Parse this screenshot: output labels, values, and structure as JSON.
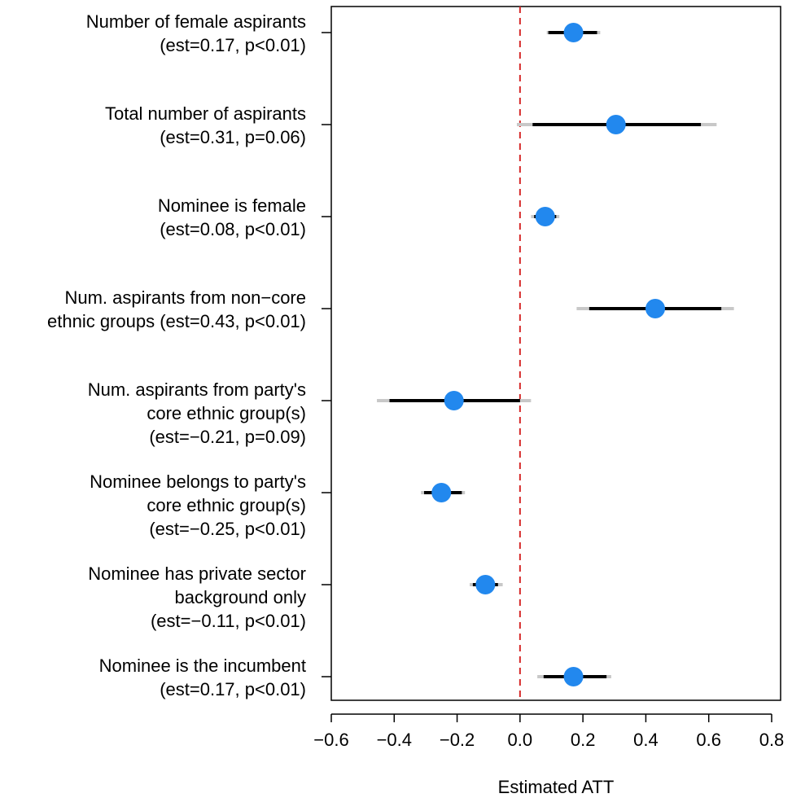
{
  "chart_data": {
    "type": "scatter",
    "xlabel": "Estimated ATT",
    "xlim": [
      -0.6,
      0.8
    ],
    "x_ticks": [
      "−0.6",
      "−0.4",
      "−0.2",
      "0.0",
      "0.2",
      "0.4",
      "0.6",
      "0.8"
    ],
    "reference_line": {
      "x": 0,
      "style": "dashed",
      "color": "#d62a2a"
    },
    "point_color": "#2288ee",
    "ci_outer_color": "#c8c8c8",
    "ci_inner_color": "#000000",
    "rows": [
      {
        "label": [
          "Number of female aspirants",
          "(est=0.17, p<0.01)"
        ],
        "est": 0.17,
        "ci90": [
          0.09,
          0.245
        ],
        "ci95": [
          0.085,
          0.255
        ]
      },
      {
        "label": [
          "Total number of aspirants",
          "(est=0.31, p=0.06)"
        ],
        "est": 0.305,
        "ci90": [
          0.04,
          0.575
        ],
        "ci95": [
          -0.01,
          0.625
        ]
      },
      {
        "label": [
          "Nominee is female",
          "(est=0.08, p<0.01)"
        ],
        "est": 0.08,
        "ci90": [
          0.045,
          0.115
        ],
        "ci95": [
          0.035,
          0.125
        ]
      },
      {
        "label": [
          "Num. aspirants from non−core",
          "ethnic groups (est=0.43, p<0.01)"
        ],
        "est": 0.43,
        "ci90": [
          0.22,
          0.64
        ],
        "ci95": [
          0.18,
          0.68
        ]
      },
      {
        "label": [
          "Num. aspirants from party's",
          "core ethnic group(s)",
          "(est=−0.21, p=0.09)"
        ],
        "est": -0.21,
        "ci90": [
          -0.415,
          0.0
        ],
        "ci95": [
          -0.455,
          0.035
        ]
      },
      {
        "label": [
          "Nominee belongs to party's",
          "core ethnic group(s)",
          "(est=−0.25, p<0.01)"
        ],
        "est": -0.25,
        "ci90": [
          -0.305,
          -0.185
        ],
        "ci95": [
          -0.315,
          -0.175
        ]
      },
      {
        "label": [
          "Nominee has private sector",
          "background only",
          "(est=−0.11, p<0.01)"
        ],
        "est": -0.11,
        "ci90": [
          -0.15,
          -0.07
        ],
        "ci95": [
          -0.16,
          -0.055
        ]
      },
      {
        "label": [
          "Nominee is the incumbent",
          "(est=0.17, p<0.01)"
        ],
        "est": 0.17,
        "ci90": [
          0.075,
          0.275
        ],
        "ci95": [
          0.055,
          0.29
        ]
      }
    ]
  }
}
